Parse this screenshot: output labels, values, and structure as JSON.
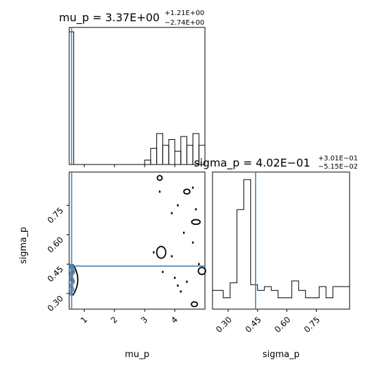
{
  "chart_data": [
    {
      "type": "histogram",
      "panel": "mu_p marginal",
      "title": "mu_p = 3.37E+00",
      "title_sup": "+1.21E+00",
      "title_sub": "−2.74E+00",
      "xlim": [
        0.5,
        5.0
      ],
      "ylim": [
        0,
        9.3
      ],
      "bins": [
        {
          "x0": 0.5,
          "x1": 0.65,
          "count": 9
        },
        {
          "x0": 3.0,
          "x1": 3.2,
          "count": 0.3
        },
        {
          "x0": 3.2,
          "x1": 3.4,
          "count": 1.1
        },
        {
          "x0": 3.4,
          "x1": 3.6,
          "count": 2.1
        },
        {
          "x0": 3.6,
          "x1": 3.8,
          "count": 1.3
        },
        {
          "x0": 3.8,
          "x1": 4.0,
          "count": 1.7
        },
        {
          "x0": 4.0,
          "x1": 4.2,
          "count": 0.9
        },
        {
          "x0": 4.2,
          "x1": 4.4,
          "count": 1.9
        },
        {
          "x0": 4.4,
          "x1": 4.6,
          "count": 1.3
        },
        {
          "x0": 4.6,
          "x1": 4.8,
          "count": 2.1
        },
        {
          "x0": 4.8,
          "x1": 5.0,
          "count": 1.3
        }
      ],
      "truth": 0.58
    },
    {
      "type": "scatter",
      "panel": "mu_p vs sigma_p",
      "xlabel": "mu_p",
      "ylabel": "sigma_p",
      "xlim": [
        0.5,
        5.0
      ],
      "ylim": [
        0.22,
        0.92
      ],
      "xticks": [
        "1",
        "2",
        "3",
        "4"
      ],
      "xtick_values": [
        1,
        2,
        3,
        4
      ],
      "yticks": [
        "0.30",
        "0.45",
        "0.60",
        "0.75"
      ],
      "ytick_values": [
        0.3,
        0.45,
        0.6,
        0.75
      ],
      "truth": {
        "x": 0.58,
        "y": 0.44
      },
      "dense_cluster": [
        {
          "x": 0.55,
          "y": 0.44
        },
        {
          "x": 0.6,
          "y": 0.42
        },
        {
          "x": 0.58,
          "y": 0.4
        },
        {
          "x": 0.56,
          "y": 0.38
        },
        {
          "x": 0.62,
          "y": 0.36
        },
        {
          "x": 0.57,
          "y": 0.34
        },
        {
          "x": 0.6,
          "y": 0.32
        },
        {
          "x": 0.55,
          "y": 0.3
        },
        {
          "x": 0.63,
          "y": 0.41
        },
        {
          "x": 0.59,
          "y": 0.37
        }
      ],
      "sparse_points": [
        {
          "x": 3.5,
          "y": 0.82
        },
        {
          "x": 4.6,
          "y": 0.84
        },
        {
          "x": 4.1,
          "y": 0.75
        },
        {
          "x": 3.9,
          "y": 0.71
        },
        {
          "x": 4.7,
          "y": 0.73
        },
        {
          "x": 4.3,
          "y": 0.61
        },
        {
          "x": 4.6,
          "y": 0.56
        },
        {
          "x": 3.3,
          "y": 0.51
        },
        {
          "x": 3.9,
          "y": 0.49
        },
        {
          "x": 4.8,
          "y": 0.45
        },
        {
          "x": 3.6,
          "y": 0.41
        },
        {
          "x": 4.0,
          "y": 0.38
        },
        {
          "x": 4.4,
          "y": 0.36
        },
        {
          "x": 4.1,
          "y": 0.34
        },
        {
          "x": 4.2,
          "y": 0.31
        }
      ],
      "contours": [
        {
          "cx": 4.4,
          "cy": 0.82,
          "rx": 0.1,
          "ry": 0.012
        },
        {
          "cx": 4.7,
          "cy": 0.665,
          "rx": 0.14,
          "ry": 0.012
        },
        {
          "cx": 3.55,
          "cy": 0.51,
          "rx": 0.15,
          "ry": 0.03
        },
        {
          "cx": 4.9,
          "cy": 0.415,
          "rx": 0.12,
          "ry": 0.018
        },
        {
          "cx": 4.65,
          "cy": 0.245,
          "rx": 0.1,
          "ry": 0.012
        },
        {
          "cx": 3.5,
          "cy": 0.89,
          "rx": 0.08,
          "ry": 0.012
        }
      ]
    },
    {
      "type": "histogram",
      "panel": "sigma_p marginal",
      "title": "sigma_p = 4.02E−01",
      "title_sup": "+3.01E−01",
      "title_sub": "−5.15E−02",
      "xlabel": "sigma_p",
      "xlim": [
        0.22,
        0.92
      ],
      "ylim": [
        0,
        7.3
      ],
      "xticks": [
        "0.30",
        "0.45",
        "0.60",
        "0.75"
      ],
      "xtick_values": [
        0.3,
        0.45,
        0.6,
        0.75
      ],
      "bins": [
        {
          "x0": 0.22,
          "x1": 0.275,
          "count": 1.0
        },
        {
          "x0": 0.275,
          "x1": 0.31,
          "count": 0.6
        },
        {
          "x0": 0.31,
          "x1": 0.345,
          "count": 1.4
        },
        {
          "x0": 0.345,
          "x1": 0.38,
          "count": 5.3
        },
        {
          "x0": 0.38,
          "x1": 0.415,
          "count": 6.9
        },
        {
          "x0": 0.415,
          "x1": 0.45,
          "count": 1.3
        },
        {
          "x0": 0.45,
          "x1": 0.485,
          "count": 1.0
        },
        {
          "x0": 0.485,
          "x1": 0.52,
          "count": 1.2
        },
        {
          "x0": 0.52,
          "x1": 0.555,
          "count": 1.0
        },
        {
          "x0": 0.555,
          "x1": 0.59,
          "count": 0.6
        },
        {
          "x0": 0.59,
          "x1": 0.625,
          "count": 0.6
        },
        {
          "x0": 0.625,
          "x1": 0.66,
          "count": 1.5
        },
        {
          "x0": 0.66,
          "x1": 0.695,
          "count": 1.0
        },
        {
          "x0": 0.695,
          "x1": 0.73,
          "count": 0.6
        },
        {
          "x0": 0.73,
          "x1": 0.765,
          "count": 0.6
        },
        {
          "x0": 0.765,
          "x1": 0.8,
          "count": 1.2
        },
        {
          "x0": 0.8,
          "x1": 0.835,
          "count": 0.6
        },
        {
          "x0": 0.835,
          "x1": 0.87,
          "count": 1.2
        },
        {
          "x0": 0.87,
          "x1": 0.92,
          "count": 1.2
        }
      ],
      "truth": 0.44
    }
  ],
  "colors": {
    "truth_line": "#4682b4",
    "hist_line": "#000000",
    "contour": "#000000",
    "dense_fill": "#4a6f95"
  }
}
